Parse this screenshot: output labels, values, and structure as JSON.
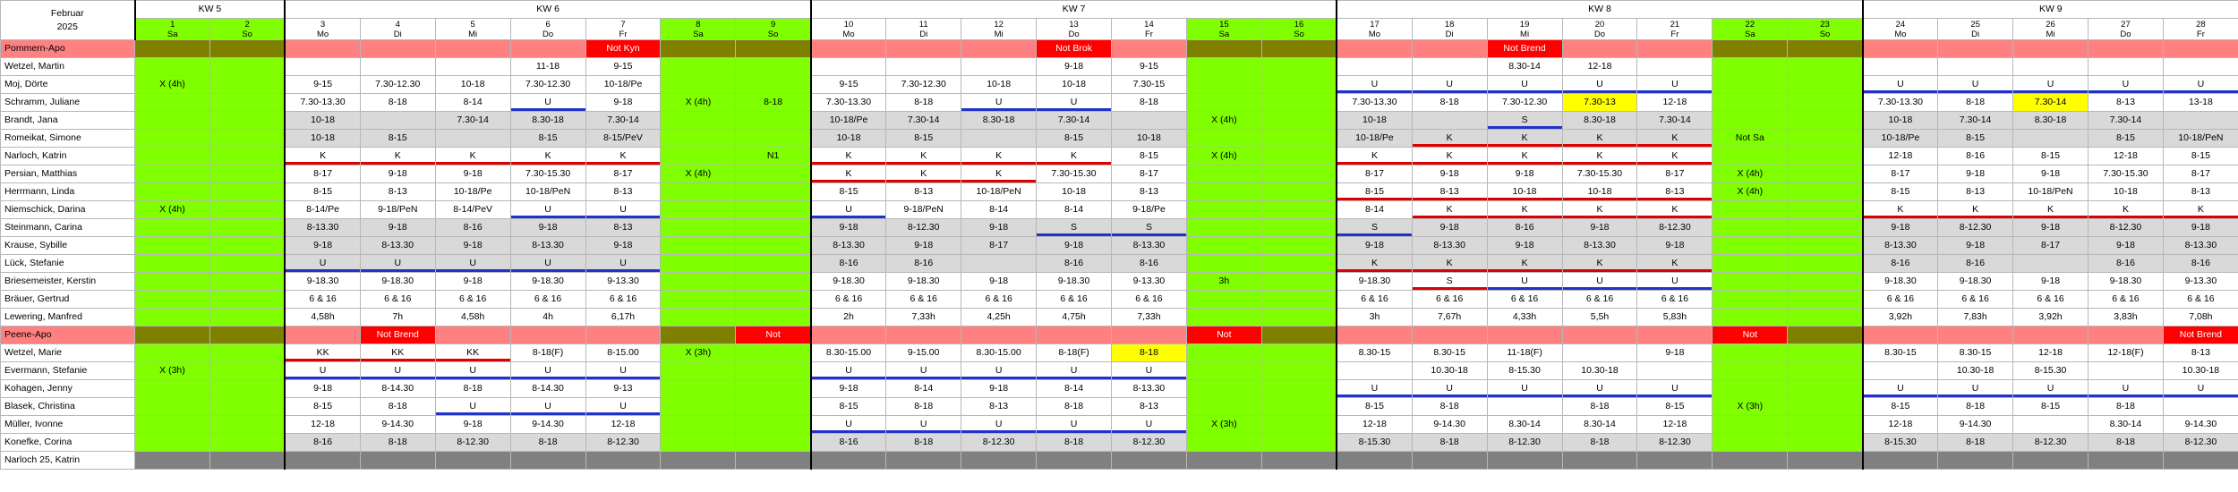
{
  "header": {
    "month": "Februar",
    "year": "2025",
    "weeks": [
      {
        "label": "KW 5",
        "span": 2
      },
      {
        "label": "KW 6",
        "span": 7
      },
      {
        "label": "KW 7",
        "span": 7
      },
      {
        "label": "KW 8",
        "span": 7
      },
      {
        "label": "KW 9",
        "span": 5
      }
    ],
    "days": [
      {
        "num": "1",
        "wd": "Sa",
        "we": true
      },
      {
        "num": "2",
        "wd": "So",
        "we": true
      },
      {
        "num": "3",
        "wd": "Mo"
      },
      {
        "num": "4",
        "wd": "Di"
      },
      {
        "num": "5",
        "wd": "Mi"
      },
      {
        "num": "6",
        "wd": "Do"
      },
      {
        "num": "7",
        "wd": "Fr"
      },
      {
        "num": "8",
        "wd": "Sa",
        "we": true
      },
      {
        "num": "9",
        "wd": "So",
        "we": true
      },
      {
        "num": "10",
        "wd": "Mo"
      },
      {
        "num": "11",
        "wd": "Di"
      },
      {
        "num": "12",
        "wd": "Mi"
      },
      {
        "num": "13",
        "wd": "Do"
      },
      {
        "num": "14",
        "wd": "Fr"
      },
      {
        "num": "15",
        "wd": "Sa",
        "we": true
      },
      {
        "num": "16",
        "wd": "So",
        "we": true
      },
      {
        "num": "17",
        "wd": "Mo"
      },
      {
        "num": "18",
        "wd": "Di"
      },
      {
        "num": "19",
        "wd": "Mi"
      },
      {
        "num": "20",
        "wd": "Do"
      },
      {
        "num": "21",
        "wd": "Fr"
      },
      {
        "num": "22",
        "wd": "Sa",
        "we": true
      },
      {
        "num": "23",
        "wd": "So",
        "we": true
      },
      {
        "num": "24",
        "wd": "Mo"
      },
      {
        "num": "25",
        "wd": "Di"
      },
      {
        "num": "26",
        "wd": "Mi"
      },
      {
        "num": "27",
        "wd": "Do"
      },
      {
        "num": "28",
        "wd": "Fr"
      }
    ]
  },
  "rows": [
    {
      "type": "apo",
      "name": "Pommern-Apo",
      "notes": {
        "6": "Not Kyn",
        "12": "Not Brok",
        "18": "Not Brend"
      }
    },
    {
      "name": "Wetzel, Martin",
      "cells": {
        "5": "11-18",
        "6": "9-15",
        "12": "9-18",
        "13": "9-15",
        "18": "8.30-14",
        "19": "12-18"
      }
    },
    {
      "name": "Moj, Dörte",
      "cells": {
        "0": "X (4h)",
        "2": "9-15",
        "3": "7.30-12.30",
        "4": "10-18",
        "5": "7.30-12.30",
        "6": "10-18/Pe",
        "9": "9-15",
        "10": "7.30-12.30",
        "11": "10-18",
        "12": "10-18",
        "13": "7.30-15",
        "16": "U",
        "17": "U",
        "18": "U",
        "19": "U",
        "20": "U",
        "23": "U",
        "24": "U",
        "25": "U",
        "26": "U",
        "27": "U"
      },
      "ub": [
        16,
        17,
        18,
        19,
        20,
        23,
        24,
        25,
        26,
        27
      ]
    },
    {
      "name": "Schramm, Juliane",
      "cells": {
        "2": "7.30-13.30",
        "3": "8-18",
        "4": "8-14",
        "5": "U",
        "6": "9-18",
        "7": "X (4h)",
        "8": "8-18",
        "9": "7.30-13.30",
        "10": "8-18",
        "11": "U",
        "12": "U",
        "13": "8-18",
        "16": "7.30-13.30",
        "17": "8-18",
        "18": "7.30-12.30",
        "19": "7.30-13",
        "20": "12-18",
        "23": "7.30-13.30",
        "24": "8-18",
        "25": "7.30-14",
        "26": "8-13",
        "27": "13-18"
      },
      "ub": [
        5,
        11,
        12
      ],
      "yel": [
        19,
        25
      ]
    },
    {
      "name": "Brandt, Jana",
      "gray": true,
      "cells": {
        "2": "10-18",
        "4": "7.30-14",
        "5": "8.30-18",
        "6": "7.30-14",
        "9": "10-18/Pe",
        "10": "7.30-14",
        "11": "8.30-18",
        "12": "7.30-14",
        "14": "X (4h)",
        "16": "10-18",
        "18": "S",
        "19": "8.30-18",
        "20": "7.30-14",
        "23": "10-18",
        "24": "7.30-14",
        "25": "8.30-18",
        "26": "7.30-14"
      },
      "ub": [
        18
      ]
    },
    {
      "name": "Romeikat, Simone",
      "gray": true,
      "cells": {
        "2": "10-18",
        "3": "8-15",
        "5": "8-15",
        "6": "8-15/PeV",
        "9": "10-18",
        "10": "8-15",
        "12": "8-15",
        "13": "10-18",
        "16": "10-18/Pe",
        "17": "K",
        "18": "K",
        "19": "K",
        "20": "K",
        "21": "Not Sa",
        "23": "10-18/Pe",
        "24": "8-15",
        "26": "8-15",
        "27": "10-18/PeN"
      },
      "ur": [
        17,
        18,
        19,
        20
      ]
    },
    {
      "name": "Narloch, Katrin",
      "cells": {
        "2": "K",
        "3": "K",
        "4": "K",
        "5": "K",
        "6": "K",
        "8": "N1",
        "9": "K",
        "10": "K",
        "11": "K",
        "12": "K",
        "13": "8-15",
        "14": "X (4h)",
        "16": "K",
        "17": "K",
        "18": "K",
        "19": "K",
        "20": "K",
        "23": "12-18",
        "24": "8-16",
        "25": "8-15",
        "26": "12-18",
        "27": "8-15"
      },
      "ur": [
        2,
        3,
        4,
        5,
        6,
        9,
        10,
        11,
        12,
        16,
        17,
        18,
        19,
        20
      ]
    },
    {
      "name": "Persian, Matthias",
      "cells": {
        "2": "8-17",
        "3": "9-18",
        "4": "9-18",
        "5": "7.30-15.30",
        "6": "8-17",
        "7": "X (4h)",
        "9": "K",
        "10": "K",
        "11": "K",
        "12": "7.30-15.30",
        "13": "8-17",
        "16": "8-17",
        "17": "9-18",
        "18": "9-18",
        "19": "7.30-15.30",
        "20": "8-17",
        "21": "X (4h)",
        "23": "8-17",
        "24": "9-18",
        "25": "9-18",
        "26": "7.30-15.30",
        "27": "8-17"
      },
      "ur": [
        9,
        10,
        11
      ]
    },
    {
      "name": "Herrmann, Linda",
      "cells": {
        "2": "8-15",
        "3": "8-13",
        "4": "10-18/Pe",
        "5": "10-18/PeN",
        "6": "8-13",
        "9": "8-15",
        "10": "8-13",
        "11": "10-18/PeN",
        "12": "10-18",
        "13": "8-13",
        "16": "8-15",
        "17": "8-13",
        "18": "10-18",
        "19": "10-18",
        "20": "8-13",
        "21": "X (4h)",
        "23": "8-15",
        "24": "8-13",
        "25": "10-18/PeN",
        "26": "10-18",
        "27": "8-13"
      },
      "ur": [
        16,
        17,
        18,
        19,
        20
      ]
    },
    {
      "name": "Niemschick, Darina",
      "cells": {
        "0": "X (4h)",
        "2": "8-14/Pe",
        "3": "9-18/PeN",
        "4": "8-14/PeV",
        "5": "U",
        "6": "U",
        "9": "U",
        "10": "9-18/PeN",
        "11": "8-14",
        "12": "8-14",
        "13": "9-18/Pe",
        "16": "8-14",
        "17": "K",
        "18": "K",
        "19": "K",
        "20": "K",
        "23": "K",
        "24": "K",
        "25": "K",
        "26": "K",
        "27": "K"
      },
      "ub": [
        5,
        6,
        9
      ],
      "ur": [
        17,
        18,
        19,
        20,
        23,
        24,
        25,
        26,
        27
      ]
    },
    {
      "name": "Steinmann, Carina",
      "gray": true,
      "cells": {
        "2": "8-13.30",
        "3": "9-18",
        "4": "8-16",
        "5": "9-18",
        "6": "8-13",
        "9": "9-18",
        "10": "8-12.30",
        "11": "9-18",
        "12": "S",
        "13": "S",
        "16": "S",
        "17": "9-18",
        "18": "8-16",
        "19": "9-18",
        "20": "8-12.30",
        "23": "9-18",
        "24": "8-12.30",
        "25": "9-18",
        "26": "8-12.30",
        "27": "9-18"
      },
      "ub": [
        12,
        13,
        16
      ]
    },
    {
      "name": "Krause, Sybille",
      "gray": true,
      "cells": {
        "2": "9-18",
        "3": "8-13.30",
        "4": "9-18",
        "5": "8-13.30",
        "6": "9-18",
        "9": "8-13.30",
        "10": "9-18",
        "11": "8-17",
        "12": "9-18",
        "13": "8-13.30",
        "16": "9-18",
        "17": "8-13.30",
        "18": "9-18",
        "19": "8-13.30",
        "20": "9-18",
        "23": "8-13.30",
        "24": "9-18",
        "25": "8-17",
        "26": "9-18",
        "27": "8-13.30"
      }
    },
    {
      "name": "Lück, Stefanie",
      "gray": true,
      "cells": {
        "2": "U",
        "3": "U",
        "4": "U",
        "5": "U",
        "6": "U",
        "9": "8-16",
        "10": "8-16",
        "12": "8-16",
        "13": "8-16",
        "16": "K",
        "17": "K",
        "18": "K",
        "19": "K",
        "20": "K",
        "23": "8-16",
        "24": "8-16",
        "26": "8-16",
        "27": "8-16"
      },
      "ub": [
        2,
        3,
        4,
        5,
        6
      ],
      "ur": [
        16,
        17,
        18,
        19,
        20
      ]
    },
    {
      "name": "Briesemeister, Kerstin",
      "cells": {
        "2": "9-18.30",
        "3": "9-18.30",
        "4": "9-18",
        "5": "9-18.30",
        "6": "9-13.30",
        "9": "9-18.30",
        "10": "9-18.30",
        "11": "9-18",
        "12": "9-18.30",
        "13": "9-13.30",
        "14": "3h",
        "16": "9-18.30",
        "17": "S",
        "18": "U",
        "19": "U",
        "20": "U",
        "23": "9-18.30",
        "24": "9-18.30",
        "25": "9-18",
        "26": "9-18.30",
        "27": "9-13.30"
      },
      "ub": [
        18,
        19,
        20
      ],
      "ur": [
        17
      ]
    },
    {
      "name": "Bräuer, Gertrud",
      "cells": {
        "2": "6 & 16",
        "3": "6 & 16",
        "4": "6 & 16",
        "5": "6 & 16",
        "6": "6 & 16",
        "9": "6 & 16",
        "10": "6 & 16",
        "11": "6 & 16",
        "12": "6 & 16",
        "13": "6 & 16",
        "16": "6 & 16",
        "17": "6 & 16",
        "18": "6 & 16",
        "19": "6 & 16",
        "20": "6 & 16",
        "23": "6 & 16",
        "24": "6 & 16",
        "25": "6 & 16",
        "26": "6 & 16",
        "27": "6 & 16"
      }
    },
    {
      "name": "Lewering, Manfred",
      "cells": {
        "2": "4,58h",
        "3": "7h",
        "4": "4,58h",
        "5": "4h",
        "6": "6,17h",
        "9": "2h",
        "10": "7,33h",
        "11": "4,25h",
        "12": "4,75h",
        "13": "7,33h",
        "16": "3h",
        "17": "7,67h",
        "18": "4,33h",
        "19": "5,5h",
        "20": "5,83h",
        "23": "3,92h",
        "24": "7,83h",
        "25": "3,92h",
        "26": "3,83h",
        "27": "7,08h"
      }
    },
    {
      "type": "apo",
      "name": "Peene-Apo",
      "notes": {
        "3": "Not Brend",
        "8": "Not",
        "14": "Not",
        "21": "Not",
        "27": "Not Brend"
      }
    },
    {
      "name": "Wetzel, Marie",
      "cells": {
        "2": "KK",
        "3": "KK",
        "4": "KK",
        "5": "8-18(F)",
        "6": "8-15.00",
        "7": "X (3h)",
        "9": "8.30-15.00",
        "10": "9-15.00",
        "11": "8.30-15.00",
        "12": "8-18(F)",
        "13": "8-18",
        "16": "8.30-15",
        "17": "8.30-15",
        "18": "11-18(F)",
        "20": "9-18",
        "23": "8.30-15",
        "24": "8.30-15",
        "25": "12-18",
        "26": "12-18(F)",
        "27": "8-13"
      },
      "ur": [
        2,
        3,
        4
      ],
      "yel": [
        13
      ]
    },
    {
      "name": "Evermann, Stefanie",
      "cells": {
        "0": "X (3h)",
        "2": "U",
        "3": "U",
        "4": "U",
        "5": "U",
        "6": "U",
        "9": "U",
        "10": "U",
        "11": "U",
        "12": "U",
        "13": "U",
        "17": "10.30-18",
        "18": "8-15.30",
        "19": "10.30-18",
        "24": "10.30-18",
        "25": "8-15.30",
        "27": "10.30-18"
      },
      "ub": [
        2,
        3,
        4,
        5,
        6,
        9,
        10,
        11,
        12,
        13
      ]
    },
    {
      "name": "Kohagen, Jenny",
      "cells": {
        "2": "9-18",
        "3": "8-14.30",
        "4": "8-18",
        "5": "8-14.30",
        "6": "9-13",
        "9": "9-18",
        "10": "8-14",
        "11": "9-18",
        "12": "8-14",
        "13": "8-13.30",
        "16": "U",
        "17": "U",
        "18": "U",
        "19": "U",
        "20": "U",
        "23": "U",
        "24": "U",
        "25": "U",
        "26": "U",
        "27": "U"
      },
      "ub": [
        16,
        17,
        18,
        19,
        20,
        23,
        24,
        25,
        26,
        27
      ]
    },
    {
      "name": "Blasek, Christina",
      "cells": {
        "2": "8-15",
        "3": "8-18",
        "4": "U",
        "5": "U",
        "6": "U",
        "9": "8-15",
        "10": "8-18",
        "11": "8-13",
        "12": "8-18",
        "13": "8-13",
        "16": "8-15",
        "17": "8-18",
        "19": "8-18",
        "20": "8-15",
        "21": "X (3h)",
        "23": "8-15",
        "24": "8-18",
        "25": "8-15",
        "26": "8-18"
      },
      "ub": [
        4,
        5,
        6
      ]
    },
    {
      "name": "Müller, Ivonne",
      "cells": {
        "2": "12-18",
        "3": "9-14.30",
        "4": "9-18",
        "5": "9-14.30",
        "6": "12-18",
        "9": "U",
        "10": "U",
        "11": "U",
        "12": "U",
        "13": "U",
        "14": "X (3h)",
        "16": "12-18",
        "17": "9-14.30",
        "18": "8.30-14",
        "19": "8.30-14",
        "20": "12-18",
        "23": "12-18",
        "24": "9-14.30",
        "26": "8.30-14",
        "27": "9-14.30"
      },
      "ub": [
        9,
        10,
        11,
        12,
        13
      ]
    },
    {
      "name": "Konefke, Corina",
      "gray": true,
      "cells": {
        "2": "8-16",
        "3": "8-18",
        "4": "8-12.30",
        "5": "8-18",
        "6": "8-12.30",
        "9": "8-16",
        "10": "8-18",
        "11": "8-12.30",
        "12": "8-18",
        "13": "8-12.30",
        "16": "8-15.30",
        "17": "8-18",
        "18": "8-12.30",
        "19": "8-18",
        "20": "8-12.30",
        "23": "8-15.30",
        "24": "8-18",
        "25": "8-12.30",
        "26": "8-18",
        "27": "8-12.30"
      }
    },
    {
      "type": "last",
      "name": "Narloch 25, Katrin"
    }
  ],
  "colors": {
    "weekend": "#80ff00",
    "apo": "#ff8080",
    "notfall": "#ff0000",
    "urlaub": "#2233cc",
    "krank": "#dd0000",
    "highlight": "#ffff00",
    "gray": "#d9d9d9"
  }
}
